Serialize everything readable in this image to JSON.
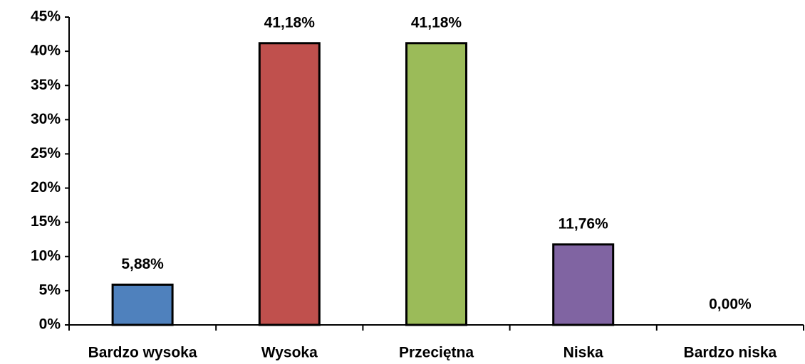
{
  "chart_data": {
    "type": "bar",
    "categories": [
      "Bardzo wysoka",
      "Wysoka",
      "Przeciętna",
      "Niska",
      "Bardzo niska"
    ],
    "values": [
      5.88,
      41.18,
      41.18,
      11.76,
      0
    ],
    "value_labels": [
      "5,88%",
      "41,18%",
      "41,18%",
      "11,76%",
      "0,00%"
    ],
    "colors": [
      "#4f81bd",
      "#c0504d",
      "#9bbb59",
      "#8064a2",
      "#4bacc6"
    ],
    "ylim": [
      0,
      45
    ],
    "yticks": [
      {
        "value": 0,
        "label": "0%"
      },
      {
        "value": 5,
        "label": "5%"
      },
      {
        "value": 10,
        "label": "10%"
      },
      {
        "value": 15,
        "label": "15%"
      },
      {
        "value": 20,
        "label": "20%"
      },
      {
        "value": 25,
        "label": "25%"
      },
      {
        "value": 30,
        "label": "30%"
      },
      {
        "value": 35,
        "label": "35%"
      },
      {
        "value": 40,
        "label": "40%"
      },
      {
        "value": 45,
        "label": "45%"
      }
    ],
    "grid": false
  }
}
